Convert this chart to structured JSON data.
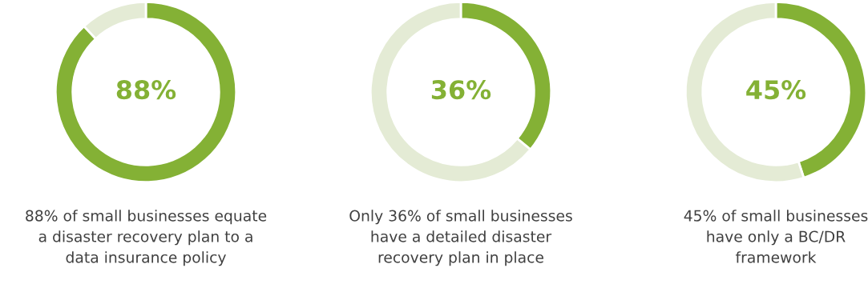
{
  "chart_data": [
    {
      "type": "donut",
      "categories": [
        null,
        null
      ],
      "values": [
        88,
        12
      ],
      "colors": [
        "#84b135",
        "#e4ebd5"
      ],
      "value_labels": [
        "88%",
        null
      ],
      "annotations": [
        "88% of small businesses equate\na disaster recovery plan to a\ndata insurance policy"
      ]
    },
    {
      "type": "donut",
      "categories": [
        null,
        null
      ],
      "values": [
        36,
        64
      ],
      "colors": [
        "#84b135",
        "#e4ebd5"
      ],
      "value_labels": [
        "36%",
        null
      ],
      "annotations": [
        "Only 36% of small businesses\nhave a detailed disaster\nrecovery plan in place"
      ]
    },
    {
      "type": "donut",
      "categories": [
        null,
        null
      ],
      "values": [
        45,
        55
      ],
      "colors": [
        "#84b135",
        "#e4ebd5"
      ],
      "value_labels": [
        "45%",
        null
      ],
      "annotations": [
        "45% of small businesses\nhave only a BC/DR\nframework"
      ]
    }
  ]
}
